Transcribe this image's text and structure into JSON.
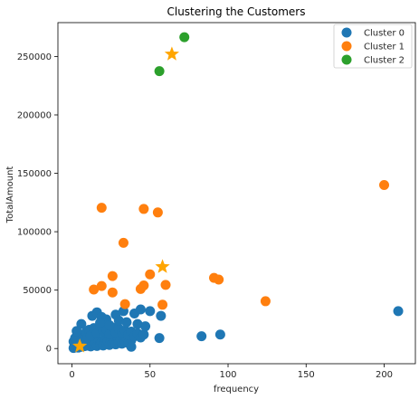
{
  "chart_data": {
    "type": "scatter",
    "title": "Clustering the Customers",
    "xlabel": "frequency",
    "ylabel": "TotalAmount",
    "xlim": [
      -9,
      220
    ],
    "ylim": [
      -13000,
      279000
    ],
    "xticks": [
      0,
      50,
      100,
      150,
      200
    ],
    "yticks": [
      0,
      50000,
      100000,
      150000,
      200000,
      250000
    ],
    "grid": false,
    "legend_position": "top-right",
    "series": [
      {
        "name": "Cluster 0",
        "color": "#1f77b4",
        "points": [
          [
            1,
            500
          ],
          [
            2,
            1200
          ],
          [
            3,
            2500
          ],
          [
            4,
            800
          ],
          [
            5,
            3000
          ],
          [
            6,
            1500
          ],
          [
            7,
            4000
          ],
          [
            8,
            2000
          ],
          [
            9,
            5000
          ],
          [
            10,
            2500
          ],
          [
            11,
            3500
          ],
          [
            12,
            1800
          ],
          [
            13,
            6000
          ],
          [
            14,
            3000
          ],
          [
            15,
            4500
          ],
          [
            16,
            2200
          ],
          [
            17,
            7000
          ],
          [
            18,
            3800
          ],
          [
            19,
            5500
          ],
          [
            20,
            2600
          ],
          [
            21,
            8000
          ],
          [
            22,
            4200
          ],
          [
            23,
            6200
          ],
          [
            24,
            3100
          ],
          [
            25,
            9000
          ],
          [
            26,
            5000
          ],
          [
            27,
            7300
          ],
          [
            28,
            3600
          ],
          [
            29,
            10000
          ],
          [
            30,
            5500
          ],
          [
            31,
            8400
          ],
          [
            32,
            4100
          ],
          [
            33,
            11000
          ],
          [
            34,
            6000
          ],
          [
            35,
            9200
          ],
          [
            36,
            4700
          ],
          [
            37,
            13000
          ],
          [
            38,
            7000
          ],
          [
            1,
            6000
          ],
          [
            2,
            9000
          ],
          [
            3,
            4500
          ],
          [
            4,
            7500
          ],
          [
            5,
            10500
          ],
          [
            6,
            6500
          ],
          [
            7,
            12000
          ],
          [
            8,
            8000
          ],
          [
            9,
            14000
          ],
          [
            10,
            9500
          ],
          [
            11,
            16000
          ],
          [
            12,
            11000
          ],
          [
            14,
            17500
          ],
          [
            16,
            13000
          ],
          [
            18,
            19000
          ],
          [
            20,
            15000
          ],
          [
            22,
            16500
          ],
          [
            24,
            12500
          ],
          [
            26,
            18000
          ],
          [
            28,
            14000
          ],
          [
            30,
            17000
          ],
          [
            32,
            13500
          ],
          [
            34,
            15500
          ],
          [
            36,
            11500
          ],
          [
            38,
            14500
          ],
          [
            40,
            10500
          ],
          [
            42,
            13000
          ],
          [
            44,
            9500
          ],
          [
            46,
            12000
          ],
          [
            6,
            21000
          ],
          [
            13,
            28000
          ],
          [
            16,
            31000
          ],
          [
            19,
            27000
          ],
          [
            22,
            25000
          ],
          [
            28,
            29000
          ],
          [
            33,
            32000
          ],
          [
            40,
            30000
          ],
          [
            44,
            33500
          ],
          [
            50,
            32000
          ],
          [
            57,
            28000
          ],
          [
            18,
            22000
          ],
          [
            24,
            20000
          ],
          [
            30,
            24000
          ],
          [
            35,
            22500
          ],
          [
            42,
            21000
          ],
          [
            47,
            19000
          ],
          [
            38,
            1500
          ],
          [
            56,
            9000
          ],
          [
            83,
            10500
          ],
          [
            95,
            12000
          ],
          [
            209,
            32000
          ],
          [
            3,
            15000
          ]
        ]
      },
      {
        "name": "Cluster 1",
        "color": "#ff7f0e",
        "points": [
          [
            14,
            50500
          ],
          [
            19,
            53500
          ],
          [
            26,
            48000
          ],
          [
            26,
            62000
          ],
          [
            33,
            90500
          ],
          [
            34,
            38000
          ],
          [
            19,
            120500
          ],
          [
            46,
            119500
          ],
          [
            55,
            116500
          ],
          [
            44,
            51000
          ],
          [
            46,
            54000
          ],
          [
            50,
            63500
          ],
          [
            58,
            37500
          ],
          [
            60,
            54500
          ],
          [
            91,
            60500
          ],
          [
            94,
            59000
          ],
          [
            124,
            40500
          ],
          [
            200,
            140000
          ]
        ]
      },
      {
        "name": "Cluster 2",
        "color": "#2ca02c",
        "points": [
          [
            56,
            237500
          ],
          [
            72,
            266500
          ]
        ]
      },
      {
        "name": "",
        "color": "#ffa500",
        "marker": "star",
        "points": [
          [
            5,
            2000
          ],
          [
            58,
            70000
          ],
          [
            64,
            252000
          ]
        ]
      }
    ]
  }
}
